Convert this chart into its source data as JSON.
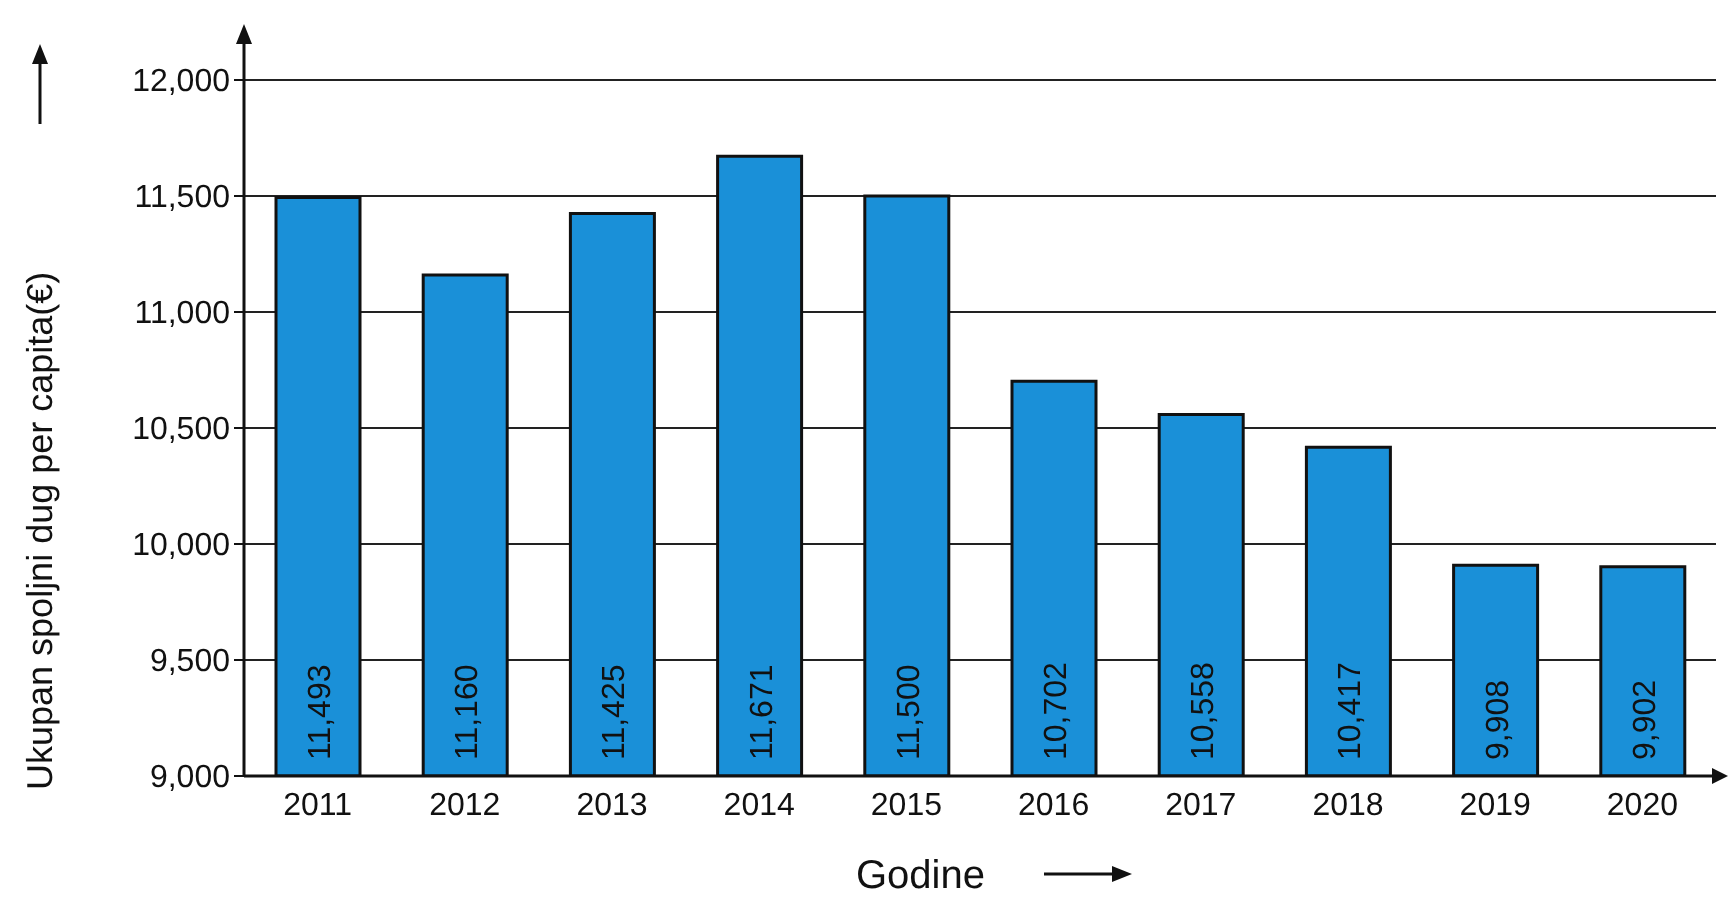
{
  "chart_data": {
    "type": "bar",
    "xlabel": "Godine",
    "ylabel": "Ukupan spoljni dug per capita(€)",
    "categories": [
      "2011",
      "2012",
      "2013",
      "2014",
      "2015",
      "2016",
      "2017",
      "2018",
      "2019",
      "2020"
    ],
    "values": [
      11493,
      11160,
      11425,
      11671,
      11500,
      10702,
      10558,
      10417,
      9908,
      9902
    ],
    "value_labels": [
      "11,493",
      "11,160",
      "11,425",
      "11,671",
      "11,500",
      "10,702",
      "10,558",
      "10,417",
      "9,908",
      "9,902"
    ],
    "color": "#1a90d8",
    "ylim": [
      9000,
      12000
    ],
    "yticks": [
      {
        "value": 9000,
        "label": "9,000"
      },
      {
        "value": 9500,
        "label": "9,500"
      },
      {
        "value": 10000,
        "label": "10,000"
      },
      {
        "value": 10500,
        "label": "10,500"
      },
      {
        "value": 11000,
        "label": "11,000"
      },
      {
        "value": 11500,
        "label": "11,500"
      },
      {
        "value": 12000,
        "label": "12,000"
      }
    ],
    "grid": "y",
    "legend": false
  }
}
